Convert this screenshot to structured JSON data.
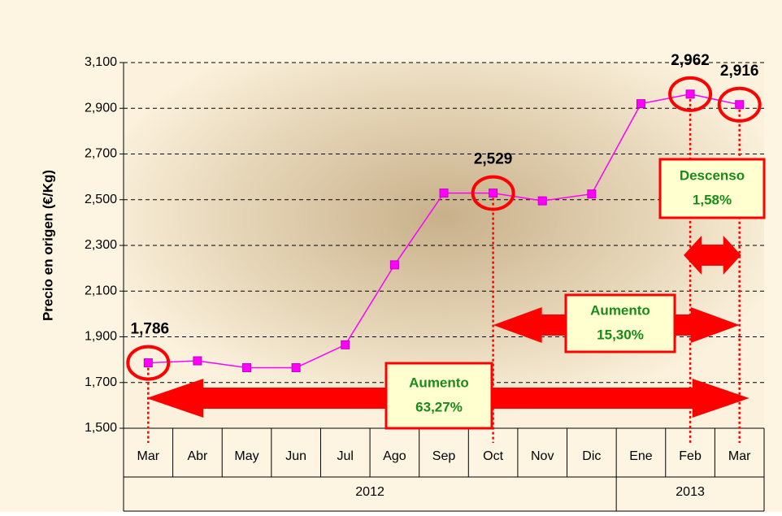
{
  "chart_data": {
    "type": "line",
    "y_axis_label": "Precio en origen (€/Kg)",
    "categories": [
      "Mar",
      "Abr",
      "May",
      "Jun",
      "Jul",
      "Ago",
      "Sep",
      "Oct",
      "Nov",
      "Dic",
      "Ene",
      "Feb",
      "Mar"
    ],
    "groups": [
      {
        "label": "2012",
        "count": 10
      },
      {
        "label": "2013",
        "count": 3
      }
    ],
    "series": [
      {
        "color": "#ff00ff",
        "values": [
          1.786,
          1.795,
          1.765,
          1.765,
          1.865,
          2.215,
          2.529,
          2.529,
          2.495,
          2.525,
          2.92,
          2.962,
          2.916
        ],
        "value_labels": [
          "1,786",
          null,
          null,
          null,
          null,
          null,
          null,
          "2,529",
          null,
          null,
          null,
          "2,962",
          "2,916"
        ]
      }
    ],
    "ylim": [
      1.5,
      3.1
    ],
    "yticks": [
      {
        "value": 1.5,
        "label": "1,500"
      },
      {
        "value": 1.7,
        "label": "1,700"
      },
      {
        "value": 1.9,
        "label": "1,900"
      },
      {
        "value": 2.1,
        "label": "2,100"
      },
      {
        "value": 2.3,
        "label": "2,300"
      },
      {
        "value": 2.5,
        "label": "2,500"
      },
      {
        "value": 2.7,
        "label": "2,700"
      },
      {
        "value": 2.9,
        "label": "2,900"
      },
      {
        "value": 3.1,
        "label": "3,100"
      }
    ],
    "grid": true,
    "annotations": [
      {
        "title": "Aumento",
        "text": "63,27%"
      },
      {
        "title": "Aumento",
        "text": "15,30%"
      },
      {
        "title": "Descenso",
        "text": "1,58%"
      }
    ]
  }
}
